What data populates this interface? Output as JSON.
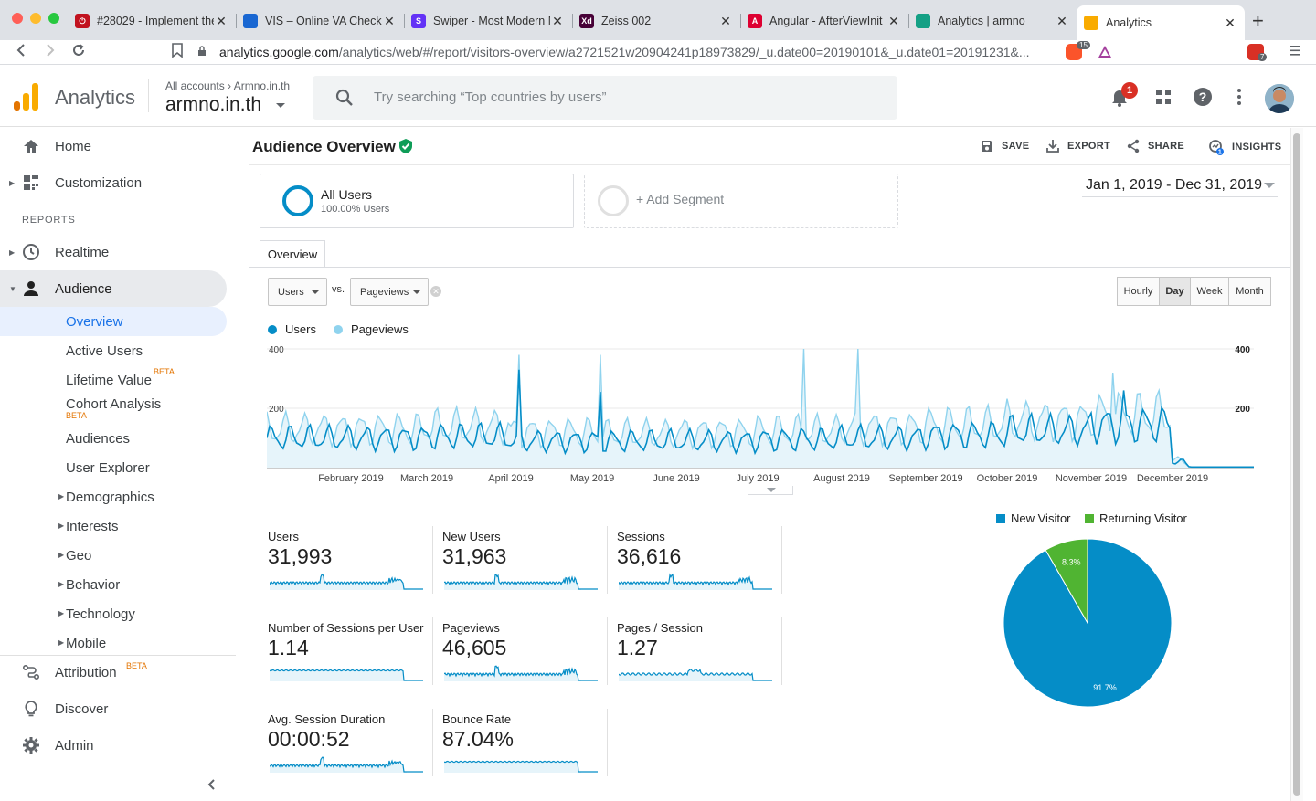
{
  "browser": {
    "tabs": [
      {
        "label": "#28029 - Implement the",
        "color": "#c1121f",
        "glyph": "⏻"
      },
      {
        "label": "VIS – Online VA Check T",
        "color": "#1967d2",
        "glyph": ""
      },
      {
        "label": "Swiper - Most Modern M",
        "color": "#6332f6",
        "glyph": "S"
      },
      {
        "label": "Zeiss 002",
        "color": "#470137",
        "glyph": "Xd"
      },
      {
        "label": "Angular - AfterViewInit",
        "color": "#dd0031",
        "glyph": "A"
      },
      {
        "label": "Analytics | armno",
        "color": "#14a085",
        "glyph": ""
      },
      {
        "label": "Analytics",
        "color": "#f9ab00",
        "glyph": ""
      }
    ],
    "url_host": "analytics.google.com",
    "url_path": "/analytics/web/#/report/visitors-overview/a2721521w20904241p18973829/_u.date00=20190101&_u.date01=20191231&...",
    "extension_badges": {
      "brave": "15",
      "ext": "7"
    }
  },
  "header": {
    "app_title": "Analytics",
    "breadcrumb_root": "All accounts",
    "breadcrumb_sep": "›",
    "breadcrumb_property": "Armno.in.th",
    "account_name": "armno.in.th",
    "search_placeholder": "Try searching “Top countries by users”",
    "notification_count": "1"
  },
  "sidebar": {
    "home": "Home",
    "customization": "Customization",
    "reports_header": "REPORTS",
    "realtime": "Realtime",
    "audience": "Audience",
    "audience_items": [
      {
        "label": "Overview",
        "active": true
      },
      {
        "label": "Active Users"
      },
      {
        "label": "Lifetime Value",
        "badge": "BETA"
      },
      {
        "label": "Cohort Analysis",
        "badge": "BETA"
      },
      {
        "label": "Audiences"
      },
      {
        "label": "User Explorer"
      },
      {
        "label": "Demographics",
        "expandable": true
      },
      {
        "label": "Interests",
        "expandable": true
      },
      {
        "label": "Geo",
        "expandable": true
      },
      {
        "label": "Behavior",
        "expandable": true
      },
      {
        "label": "Technology",
        "expandable": true
      },
      {
        "label": "Mobile",
        "expandable": true
      }
    ],
    "attribution": "Attribution",
    "attribution_badge": "BETA",
    "discover": "Discover",
    "admin": "Admin"
  },
  "report": {
    "title": "Audience Overview",
    "actions": {
      "save": "SAVE",
      "export": "EXPORT",
      "share": "SHARE",
      "insights": "INSIGHTS",
      "insights_count": "1"
    },
    "segment": {
      "name": "All Users",
      "sub": "100.00% Users",
      "add": "+ Add Segment"
    },
    "date_range": "Jan 1, 2019 - Dec 31, 2019",
    "tab": "Overview",
    "metric_select_1": "Users",
    "vs": "vs.",
    "metric_select_2": "Pageviews",
    "granularity": [
      "Hourly",
      "Day",
      "Week",
      "Month"
    ],
    "granularity_active": "Day",
    "legend": [
      {
        "label": "Users",
        "color": "#058dc7"
      },
      {
        "label": "Pageviews",
        "color": "#8fd3ee"
      }
    ],
    "metrics": [
      {
        "label": "Users",
        "value": "31,993",
        "shape": "spiky"
      },
      {
        "label": "New Users",
        "value": "31,963",
        "shape": "spiky"
      },
      {
        "label": "Sessions",
        "value": "36,616",
        "shape": "spiky"
      },
      {
        "label": "Number of Sessions per User",
        "value": "1.14",
        "shape": "flat"
      },
      {
        "label": "Pageviews",
        "value": "46,605",
        "shape": "spiky"
      },
      {
        "label": "Pages / Session",
        "value": "1.27",
        "shape": "flatbump"
      },
      {
        "label": "Avg. Session Duration",
        "value": "00:00:52",
        "shape": "spiky"
      },
      {
        "label": "Bounce Rate",
        "value": "87.04%",
        "shape": "flat"
      }
    ],
    "pie": {
      "legend": [
        {
          "label": "New Visitor",
          "color": "#058dc7"
        },
        {
          "label": "Returning Visitor",
          "color": "#50b432"
        }
      ],
      "slices": [
        {
          "label": "91.7%",
          "value": 91.7,
          "color": "#058dc7"
        },
        {
          "label": "8.3%",
          "value": 8.3,
          "color": "#50b432"
        }
      ]
    }
  },
  "chart_data": {
    "type": "area",
    "title": "Users vs. Pageviews",
    "xlabel": "",
    "ylabel": "",
    "ylim": [
      0,
      400
    ],
    "y_ticks_left": [
      "400",
      "200"
    ],
    "y_ticks_right": [
      "400",
      "200"
    ],
    "x_ticks": [
      "February 2019",
      "March 2019",
      "April 2019",
      "May 2019",
      "June 2019",
      "July 2019",
      "August 2019",
      "September 2019",
      "October 2019",
      "November 2019",
      "December 2019"
    ],
    "x_tick_months": [
      2,
      3,
      4,
      5,
      6,
      7,
      8,
      9,
      10,
      11,
      12
    ],
    "series": [
      {
        "name": "Users",
        "color": "#058dc7",
        "monthly_avg": [
          100,
          100,
          105,
          90,
          90,
          90,
          95,
          100,
          110,
          125,
          145,
          20
        ],
        "spikes": [
          {
            "day": 93,
            "value": 330
          },
          {
            "day": 123,
            "value": 255
          },
          {
            "day": 316,
            "value": 260
          }
        ]
      },
      {
        "name": "Pageviews",
        "color": "#8fd3ee",
        "monthly_avg": [
          130,
          130,
          140,
          120,
          115,
          120,
          125,
          135,
          145,
          160,
          180,
          25
        ],
        "spikes": [
          {
            "day": 93,
            "value": 380
          },
          {
            "day": 123,
            "value": 380
          },
          {
            "day": 198,
            "value": 400
          },
          {
            "day": 218,
            "value": 400
          },
          {
            "day": 312,
            "value": 320
          }
        ]
      }
    ]
  }
}
